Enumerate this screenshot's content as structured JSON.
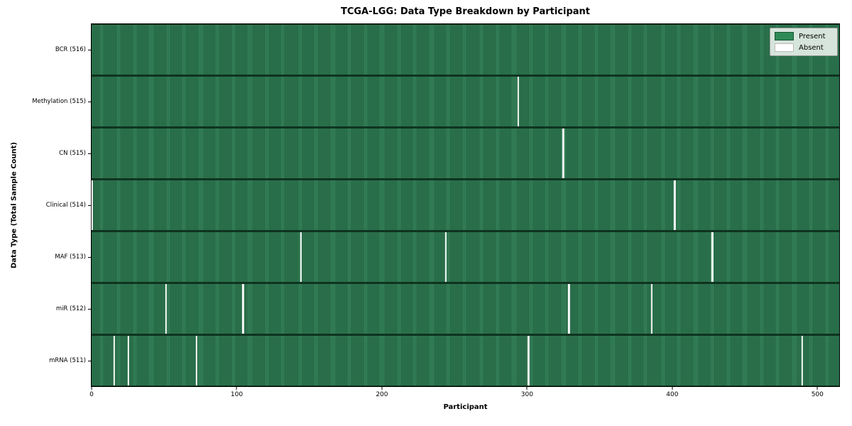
{
  "chart_data": {
    "type": "heatmap",
    "title": "TCGA-LGG: Data Type Breakdown by Participant",
    "xlabel": "Participant",
    "ylabel": "Data Type (Total Sample Count)",
    "n_participants": 516,
    "xlim": [
      -0.5,
      515.5
    ],
    "x_ticks": [
      0,
      100,
      200,
      300,
      400,
      500
    ],
    "grid": false,
    "legend_position": "upper right",
    "colors": {
      "present": "#2e8b57",
      "present_edge": "#1b5737",
      "absent": "#ffffff"
    },
    "legend": [
      {
        "label": "Present",
        "color": "#2e8b57"
      },
      {
        "label": "Absent",
        "color": "#ffffff"
      }
    ],
    "rows": [
      {
        "label": "BCR (516)",
        "data_type": "BCR",
        "present_count": 516,
        "absent_participants": []
      },
      {
        "label": "Methylation (515)",
        "data_type": "Methylation",
        "present_count": 515,
        "absent_participants": [
          294
        ]
      },
      {
        "label": "CN (515)",
        "data_type": "CN",
        "present_count": 515,
        "absent_participants": [
          325
        ]
      },
      {
        "label": "Clinical (514)",
        "data_type": "Clinical",
        "present_count": 514,
        "absent_participants": [
          0,
          402
        ]
      },
      {
        "label": "MAF (513)",
        "data_type": "MAF",
        "present_count": 513,
        "absent_participants": [
          144,
          244,
          428
        ]
      },
      {
        "label": "miR (512)",
        "data_type": "miR",
        "present_count": 512,
        "absent_participants": [
          51,
          104,
          329,
          386
        ]
      },
      {
        "label": "mRNA (511)",
        "data_type": "mRNA",
        "present_count": 511,
        "absent_participants": [
          15,
          25,
          72,
          301,
          490
        ]
      }
    ]
  }
}
